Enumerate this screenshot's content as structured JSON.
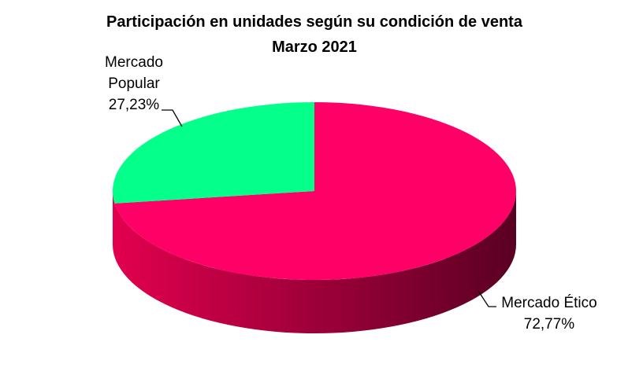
{
  "chart_data": {
    "type": "pie",
    "title": "Participación en unidades según su condición de venta",
    "subtitle": "Marzo 2021",
    "slices": [
      {
        "name": "Mercado Popular",
        "label_lines": [
          "Mercado",
          "Popular"
        ],
        "value": 27.23,
        "value_text": "27,23%",
        "color": "#05FF8B",
        "side_color_light": "#E2004F",
        "side_color_dark": "#5A0022"
      },
      {
        "name": "Mercado Ético",
        "label_lines": [
          "Mercado Ético"
        ],
        "value": 72.77,
        "value_text": "72,77%",
        "color": "#FF0066",
        "side_color_light": "#E2004F",
        "side_color_dark": "#5A0022"
      }
    ],
    "style": "3d-pie",
    "legend": "none"
  }
}
